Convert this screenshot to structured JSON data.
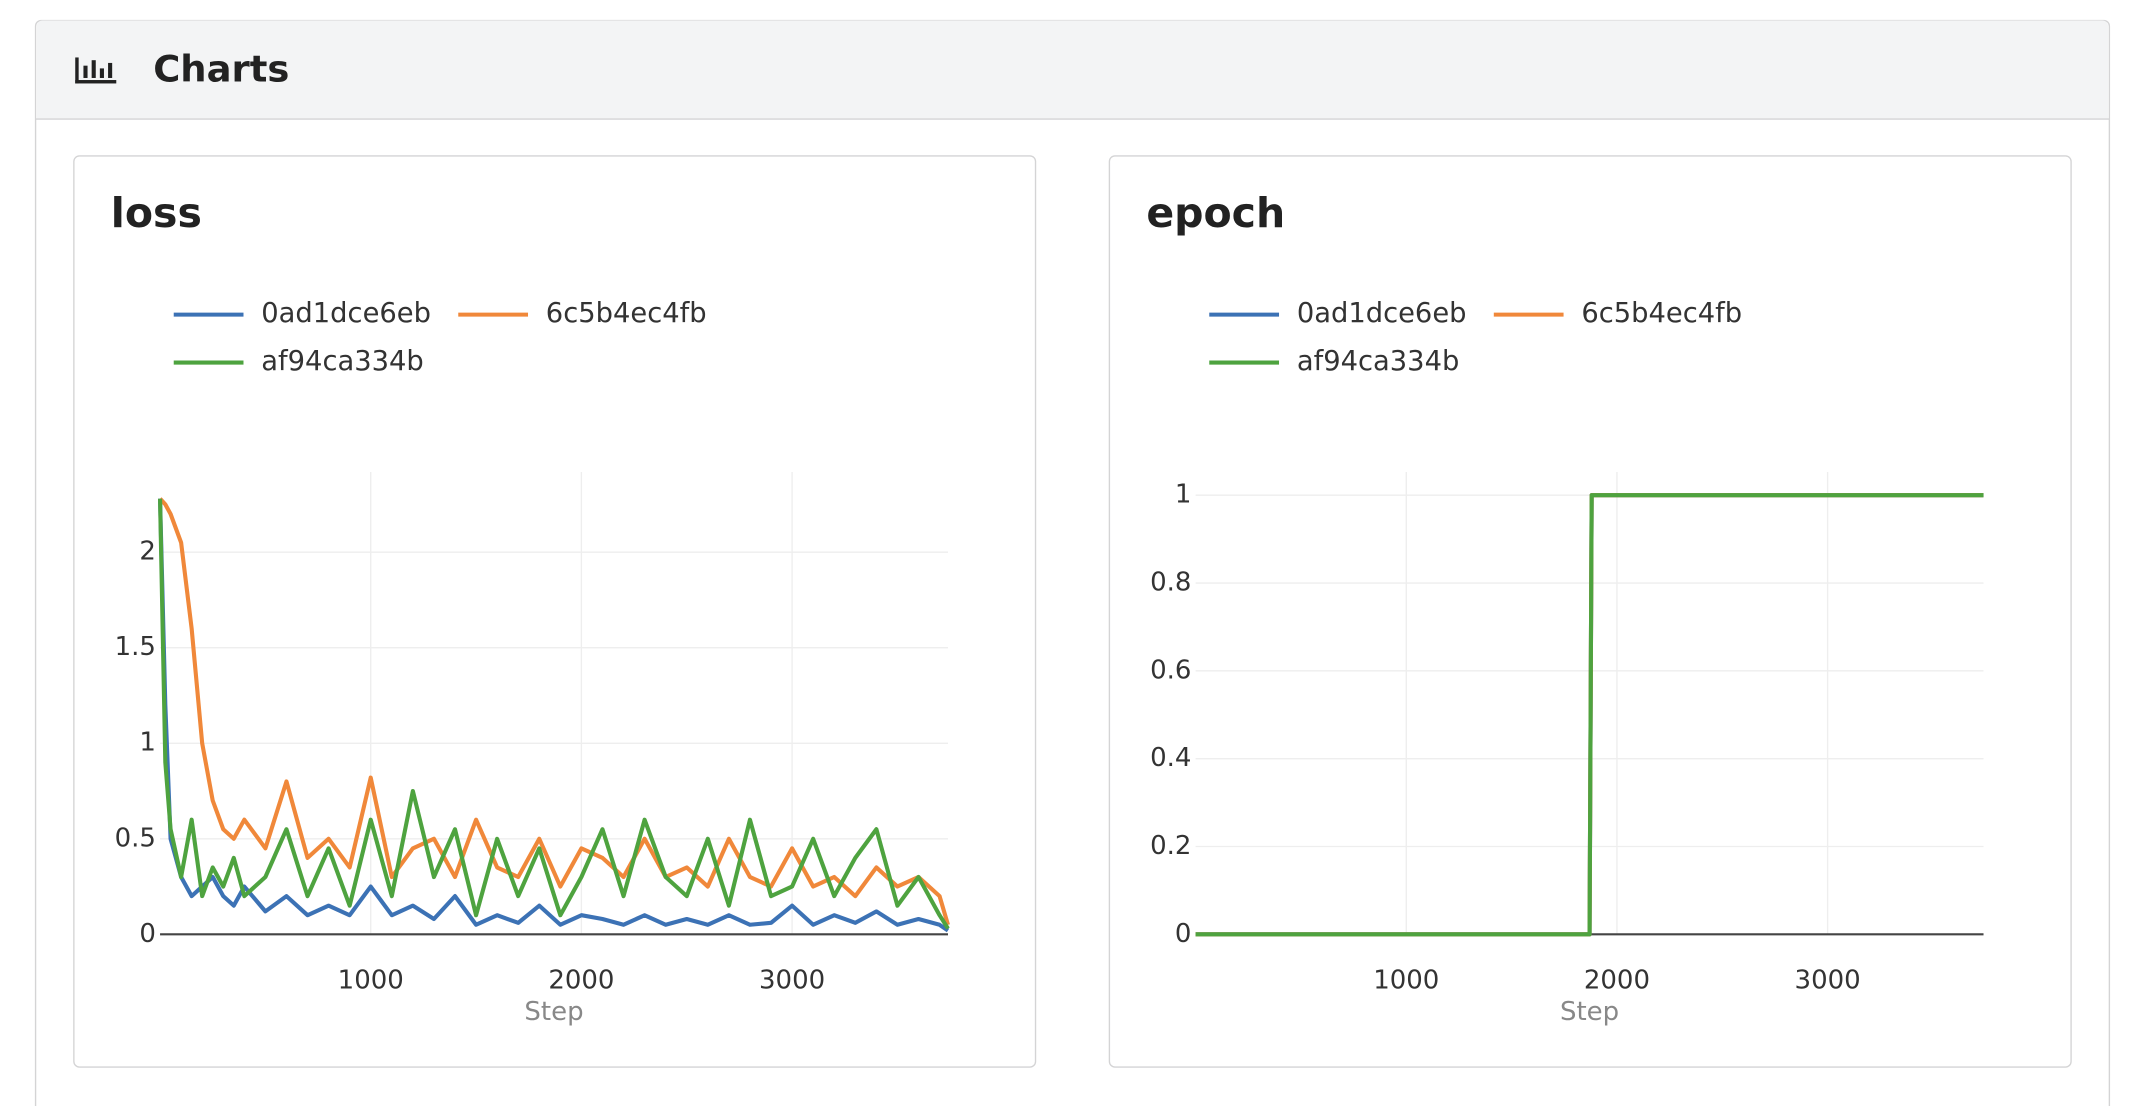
{
  "header": {
    "title": "Charts"
  },
  "chart_data": [
    {
      "type": "line",
      "title": "loss",
      "x_label": "Step",
      "x": [
        0,
        25,
        50,
        100,
        150,
        200,
        250,
        300,
        350,
        400,
        500,
        600,
        700,
        800,
        900,
        1000,
        1100,
        1200,
        1300,
        1400,
        1500,
        1600,
        1700,
        1800,
        1900,
        2000,
        2100,
        2200,
        2300,
        2400,
        2500,
        2600,
        2700,
        2800,
        2900,
        3000,
        3100,
        3200,
        3300,
        3400,
        3500,
        3600,
        3700,
        3740
      ],
      "series": [
        {
          "name": "0ad1dce6eb",
          "color": "#3c72b5",
          "values": [
            2.28,
            1.2,
            0.5,
            0.3,
            0.2,
            0.25,
            0.3,
            0.2,
            0.15,
            0.25,
            0.12,
            0.2,
            0.1,
            0.15,
            0.1,
            0.25,
            0.1,
            0.15,
            0.08,
            0.2,
            0.05,
            0.1,
            0.06,
            0.15,
            0.05,
            0.1,
            0.08,
            0.05,
            0.1,
            0.05,
            0.08,
            0.05,
            0.1,
            0.05,
            0.06,
            0.15,
            0.05,
            0.1,
            0.06,
            0.12,
            0.05,
            0.08,
            0.05,
            0.02
          ]
        },
        {
          "name": "6c5b4ec4fb",
          "color": "#f0883a",
          "values": [
            2.28,
            2.25,
            2.2,
            2.05,
            1.6,
            1.0,
            0.7,
            0.55,
            0.5,
            0.6,
            0.45,
            0.8,
            0.4,
            0.5,
            0.35,
            0.82,
            0.3,
            0.45,
            0.5,
            0.3,
            0.6,
            0.35,
            0.3,
            0.5,
            0.25,
            0.45,
            0.4,
            0.3,
            0.5,
            0.3,
            0.35,
            0.25,
            0.5,
            0.3,
            0.25,
            0.45,
            0.25,
            0.3,
            0.2,
            0.35,
            0.25,
            0.3,
            0.2,
            0.05
          ]
        },
        {
          "name": "af94ca334b",
          "color": "#4ea33f",
          "values": [
            2.28,
            0.9,
            0.55,
            0.3,
            0.6,
            0.2,
            0.35,
            0.25,
            0.4,
            0.2,
            0.3,
            0.55,
            0.2,
            0.45,
            0.15,
            0.6,
            0.2,
            0.75,
            0.3,
            0.55,
            0.1,
            0.5,
            0.2,
            0.45,
            0.1,
            0.3,
            0.55,
            0.2,
            0.6,
            0.3,
            0.2,
            0.5,
            0.15,
            0.6,
            0.2,
            0.25,
            0.5,
            0.2,
            0.4,
            0.55,
            0.15,
            0.3,
            0.1,
            0.03
          ]
        }
      ],
      "xlim": [
        0,
        3740
      ],
      "ylim": [
        0,
        2.42
      ],
      "xticks": [
        1000,
        2000,
        3000
      ],
      "yticks": [
        0,
        0.5,
        1,
        1.5,
        2
      ],
      "grid": true
    },
    {
      "type": "line",
      "title": "epoch",
      "x_label": "Step",
      "x": [
        0,
        1870,
        1880,
        3740
      ],
      "series": [
        {
          "name": "0ad1dce6eb",
          "color": "#3c72b5",
          "values": [
            0,
            0,
            1,
            1
          ]
        },
        {
          "name": "6c5b4ec4fb",
          "color": "#f0883a",
          "values": [
            0,
            0,
            1,
            1
          ]
        },
        {
          "name": "af94ca334b",
          "color": "#4ea33f",
          "values": [
            0,
            0,
            1,
            1
          ]
        }
      ],
      "xlim": [
        0,
        3740
      ],
      "ylim": [
        0,
        1.053
      ],
      "xticks": [
        1000,
        2000,
        3000
      ],
      "yticks": [
        0,
        0.2,
        0.4,
        0.6,
        0.8,
        1
      ],
      "grid": true
    }
  ]
}
